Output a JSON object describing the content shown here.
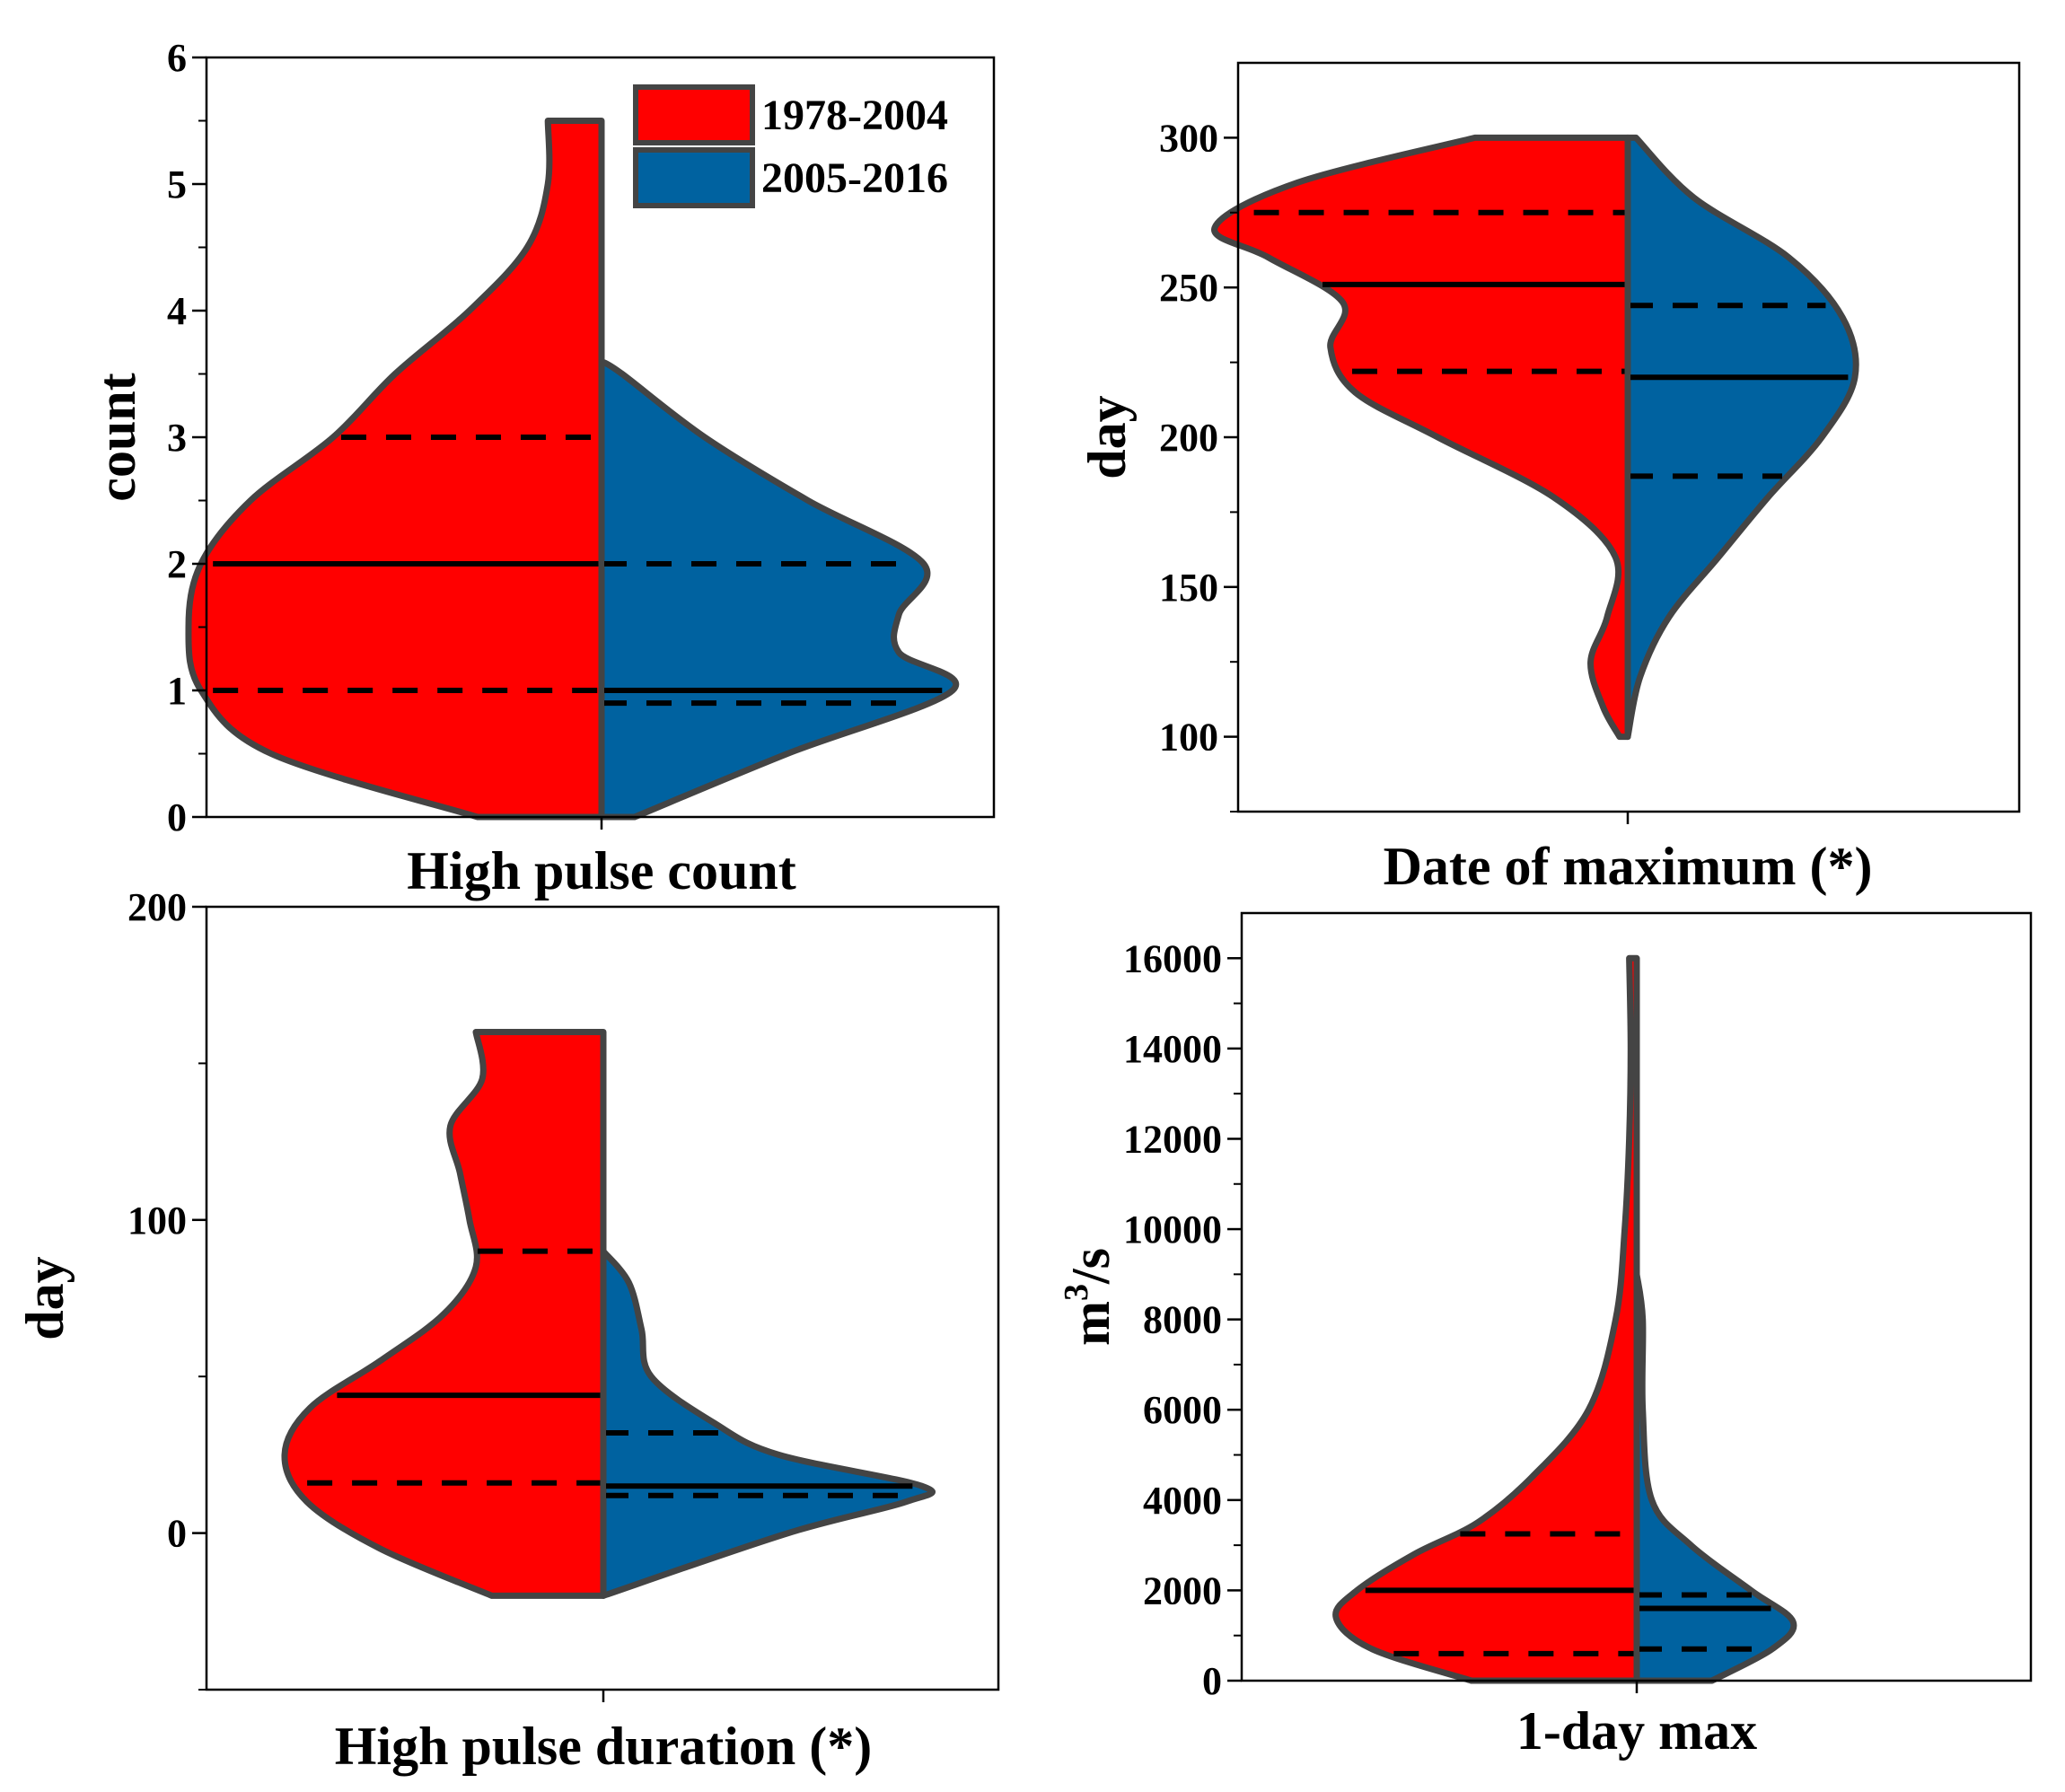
{
  "legend": {
    "items": [
      {
        "label": "1978-2004",
        "color": "#ff0000"
      },
      {
        "label": "2005-2016",
        "color": "#0062a0"
      }
    ]
  },
  "chart_data": [
    {
      "type": "violin",
      "title": "High pulse count",
      "xlabel": "High pulse count",
      "ylabel": "count",
      "ylim": [
        0,
        6
      ],
      "yticks": [
        0,
        1,
        2,
        3,
        4,
        5,
        6
      ],
      "ytick_labels": [
        "0",
        "1",
        "2",
        "3",
        "4",
        "5",
        "6"
      ],
      "series": [
        {
          "name": "1978-2004",
          "color": "#ff0000",
          "range": [
            0,
            5.5
          ],
          "quartiles": {
            "q1": 1,
            "median": 2,
            "q3": 3
          },
          "density": [
            [
              0,
              0.3
            ],
            [
              0.5,
              0.8
            ],
            [
              1,
              0.97
            ],
            [
              1.5,
              1.0
            ],
            [
              2,
              0.97
            ],
            [
              2.5,
              0.85
            ],
            [
              3,
              0.65
            ],
            [
              3.5,
              0.5
            ],
            [
              4,
              0.32
            ],
            [
              4.5,
              0.18
            ],
            [
              5,
              0.13
            ],
            [
              5.5,
              0.13
            ]
          ]
        },
        {
          "name": "2005-2016",
          "color": "#0062a0",
          "range": [
            0,
            3.6
          ],
          "quartiles": {
            "q1": 0.9,
            "median": 1,
            "q3": 2
          },
          "density": [
            [
              0,
              0.08
            ],
            [
              0.5,
              0.45
            ],
            [
              1,
              0.85
            ],
            [
              1.3,
              0.72
            ],
            [
              1.6,
              0.72
            ],
            [
              2,
              0.78
            ],
            [
              2.5,
              0.5
            ],
            [
              3,
              0.25
            ],
            [
              3.5,
              0.05
            ],
            [
              3.6,
              0
            ]
          ]
        }
      ]
    },
    {
      "type": "violin",
      "title": "Date of maximum (*)",
      "xlabel": "Date of maximum (*)",
      "ylabel": "day",
      "ylim": [
        75,
        325
      ],
      "yticks": [
        100,
        150,
        200,
        250,
        300
      ],
      "ytick_labels": [
        "100",
        "150",
        "200",
        "250",
        "300"
      ],
      "series": [
        {
          "name": "1978-2004",
          "color": "#ff0000",
          "range": [
            100,
            300
          ],
          "quartiles": {
            "q1": 222,
            "median": 251,
            "q3": 275
          },
          "density": [
            [
              100,
              0.02
            ],
            [
              110,
              0.06
            ],
            [
              125,
              0.09
            ],
            [
              140,
              0.05
            ],
            [
              160,
              0.03
            ],
            [
              180,
              0.18
            ],
            [
              200,
              0.46
            ],
            [
              215,
              0.66
            ],
            [
              230,
              0.72
            ],
            [
              245,
              0.69
            ],
            [
              260,
              0.87
            ],
            [
              270,
              1.0
            ],
            [
              285,
              0.8
            ],
            [
              300,
              0.37
            ]
          ]
        },
        {
          "name": "2005-2016",
          "color": "#0062a0",
          "range": [
            100,
            300
          ],
          "quartiles": {
            "q1": 187,
            "median": 220,
            "q3": 244
          },
          "density": [
            [
              100,
              0.0
            ],
            [
              120,
              0.03
            ],
            [
              140,
              0.1
            ],
            [
              160,
              0.22
            ],
            [
              180,
              0.34
            ],
            [
              200,
              0.47
            ],
            [
              220,
              0.55
            ],
            [
              240,
              0.52
            ],
            [
              260,
              0.39
            ],
            [
              280,
              0.16
            ],
            [
              300,
              0.02
            ]
          ]
        }
      ]
    },
    {
      "type": "violin",
      "title": "High pulse duration (*)",
      "xlabel": "High pulse duration (*)",
      "ylabel": "day",
      "ylim": [
        -50,
        200
      ],
      "yticks": [
        0,
        100,
        200
      ],
      "ytick_labels": [
        "0",
        "100",
        "200"
      ],
      "series": [
        {
          "name": "1978-2004",
          "color": "#ff0000",
          "range": [
            -20,
            160
          ],
          "quartiles": {
            "q1": 16,
            "median": 44,
            "q3": 90
          },
          "density": [
            [
              -20,
              0.35
            ],
            [
              -5,
              0.7
            ],
            [
              10,
              0.93
            ],
            [
              25,
              1.0
            ],
            [
              40,
              0.92
            ],
            [
              55,
              0.7
            ],
            [
              70,
              0.5
            ],
            [
              85,
              0.4
            ],
            [
              100,
              0.42
            ],
            [
              115,
              0.45
            ],
            [
              130,
              0.48
            ],
            [
              145,
              0.38
            ],
            [
              160,
              0.4
            ]
          ]
        },
        {
          "name": "2005-2016",
          "color": "#0062a0",
          "range": [
            -20,
            90
          ],
          "quartiles": {
            "q1": 12,
            "median": 15,
            "q3": 32
          },
          "density": [
            [
              -20,
              0.0
            ],
            [
              0,
              0.58
            ],
            [
              10,
              0.95
            ],
            [
              15,
              1.0
            ],
            [
              25,
              0.55
            ],
            [
              35,
              0.35
            ],
            [
              50,
              0.15
            ],
            [
              65,
              0.12
            ],
            [
              80,
              0.08
            ],
            [
              90,
              0.0
            ]
          ]
        }
      ]
    },
    {
      "type": "violin",
      "title": "1-day max",
      "xlabel": "1-day max",
      "ylabel": "m3/s",
      "ylim": [
        0,
        17000
      ],
      "yticks": [
        0,
        2000,
        4000,
        6000,
        8000,
        10000,
        12000,
        14000,
        16000
      ],
      "ytick_labels": [
        "0",
        "2000",
        "4000",
        "6000",
        "8000",
        "10000",
        "12000",
        "14000",
        "16000"
      ],
      "series": [
        {
          "name": "1978-2004",
          "color": "#ff0000",
          "range": [
            0,
            16000
          ],
          "quartiles": {
            "q1": 600,
            "median": 2000,
            "q3": 3250
          },
          "density": [
            [
              0,
              0.55
            ],
            [
              700,
              0.88
            ],
            [
              1400,
              1.0
            ],
            [
              2000,
              0.93
            ],
            [
              2800,
              0.74
            ],
            [
              3500,
              0.53
            ],
            [
              4500,
              0.35
            ],
            [
              6000,
              0.16
            ],
            [
              8000,
              0.07
            ],
            [
              10000,
              0.04
            ],
            [
              12000,
              0.025
            ],
            [
              14000,
              0.02
            ],
            [
              16000,
              0.025
            ]
          ]
        },
        {
          "name": "2005-2016",
          "color": "#0062a0",
          "range": [
            0,
            9000
          ],
          "quartiles": {
            "q1": 700,
            "median": 1600,
            "q3": 1900
          },
          "density": [
            [
              0,
              0.25
            ],
            [
              700,
              0.45
            ],
            [
              1300,
              0.52
            ],
            [
              2000,
              0.38
            ],
            [
              3000,
              0.18
            ],
            [
              4000,
              0.05
            ],
            [
              6000,
              0.02
            ],
            [
              8000,
              0.02
            ],
            [
              9000,
              0.0
            ]
          ]
        }
      ]
    }
  ]
}
